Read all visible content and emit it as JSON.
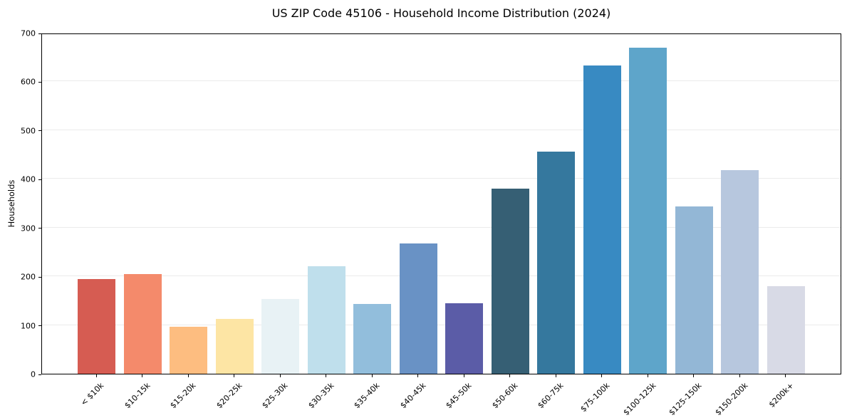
{
  "chart_data": {
    "type": "bar",
    "title": "US ZIP Code 45106 - Household Income Distribution (2024)",
    "xlabel": "",
    "ylabel": "Households",
    "categories": [
      "< $10k",
      "$10-15k",
      "$15-20k",
      "$20-25k",
      "$25-30k",
      "$30-35k",
      "$35-40k",
      "$40-45k",
      "$45-50k",
      "$50-60k",
      "$60-75k",
      "$75-100k",
      "$100-125k",
      "$125-150k",
      "$150-200k",
      "$200k+"
    ],
    "values": [
      195,
      205,
      96,
      112,
      154,
      221,
      143,
      268,
      145,
      380,
      456,
      633,
      670,
      344,
      418,
      180
    ],
    "bar_colors": [
      "#d65c52",
      "#f48a6b",
      "#fdbd80",
      "#fde5a4",
      "#e8f2f5",
      "#bfdfec",
      "#92bedc",
      "#6992c5",
      "#5b5ca7",
      "#365f74",
      "#35789e",
      "#388ac2",
      "#5ea5ca",
      "#93b7d6",
      "#b7c7de",
      "#d8dae6"
    ],
    "ylim": [
      0,
      700
    ],
    "yticks": [
      0,
      100,
      200,
      300,
      400,
      500,
      600,
      700
    ],
    "grid": "horizontal",
    "gridline_color": "#ebebeb",
    "axis_color": "#000000",
    "background_color": "#ffffff",
    "legend": "none"
  }
}
